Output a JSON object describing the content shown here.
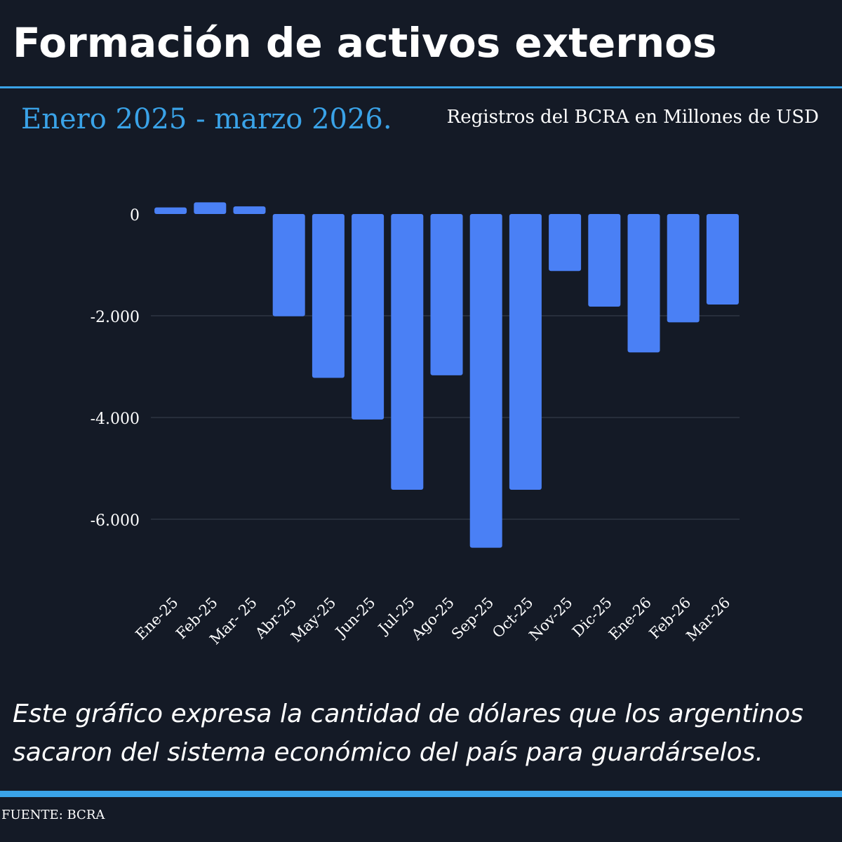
{
  "header": {
    "title": "Formación de activos externos",
    "subtitle": "Enero 2025 - marzo 2026.",
    "units_note": "Registros del BCRA en Millones de USD"
  },
  "chart_data": {
    "type": "bar",
    "title": "",
    "xlabel": "",
    "ylabel": "",
    "categories": [
      "Ene-25",
      "Feb-25",
      "Mar- 25",
      "Abr-25",
      "May-25",
      "Jun-25",
      "Jul-25",
      "Ago-25",
      "Sep-25",
      "Oct-25",
      "Nov-25",
      "Dic-25",
      "Ene-26",
      "Feb-26",
      "Mar-26"
    ],
    "values": [
      130,
      230,
      150,
      -2010,
      -3220,
      -4040,
      -5420,
      -3170,
      -6560,
      -5420,
      -1120,
      -1820,
      -2720,
      -2130,
      -1780
    ],
    "ylim": [
      -7000,
      400
    ],
    "yticks": [
      0,
      -2000,
      -4000,
      -6000
    ],
    "ytick_labels": [
      "0",
      "-2.000",
      "-4.000",
      "-6.000"
    ],
    "grid": true,
    "legend": "none",
    "bar_color": "#4a80f5",
    "grid_color": "#3a4150"
  },
  "footer": {
    "caption": "Este gráfico expresa la cantidad de dólares que los argentinos sacaron del sistema económico del país para guardárselos.",
    "source": "FUENTE: BCRA"
  },
  "colors": {
    "background": "#141a26",
    "accent": "#3aa3e8",
    "text": "#ffffff"
  }
}
